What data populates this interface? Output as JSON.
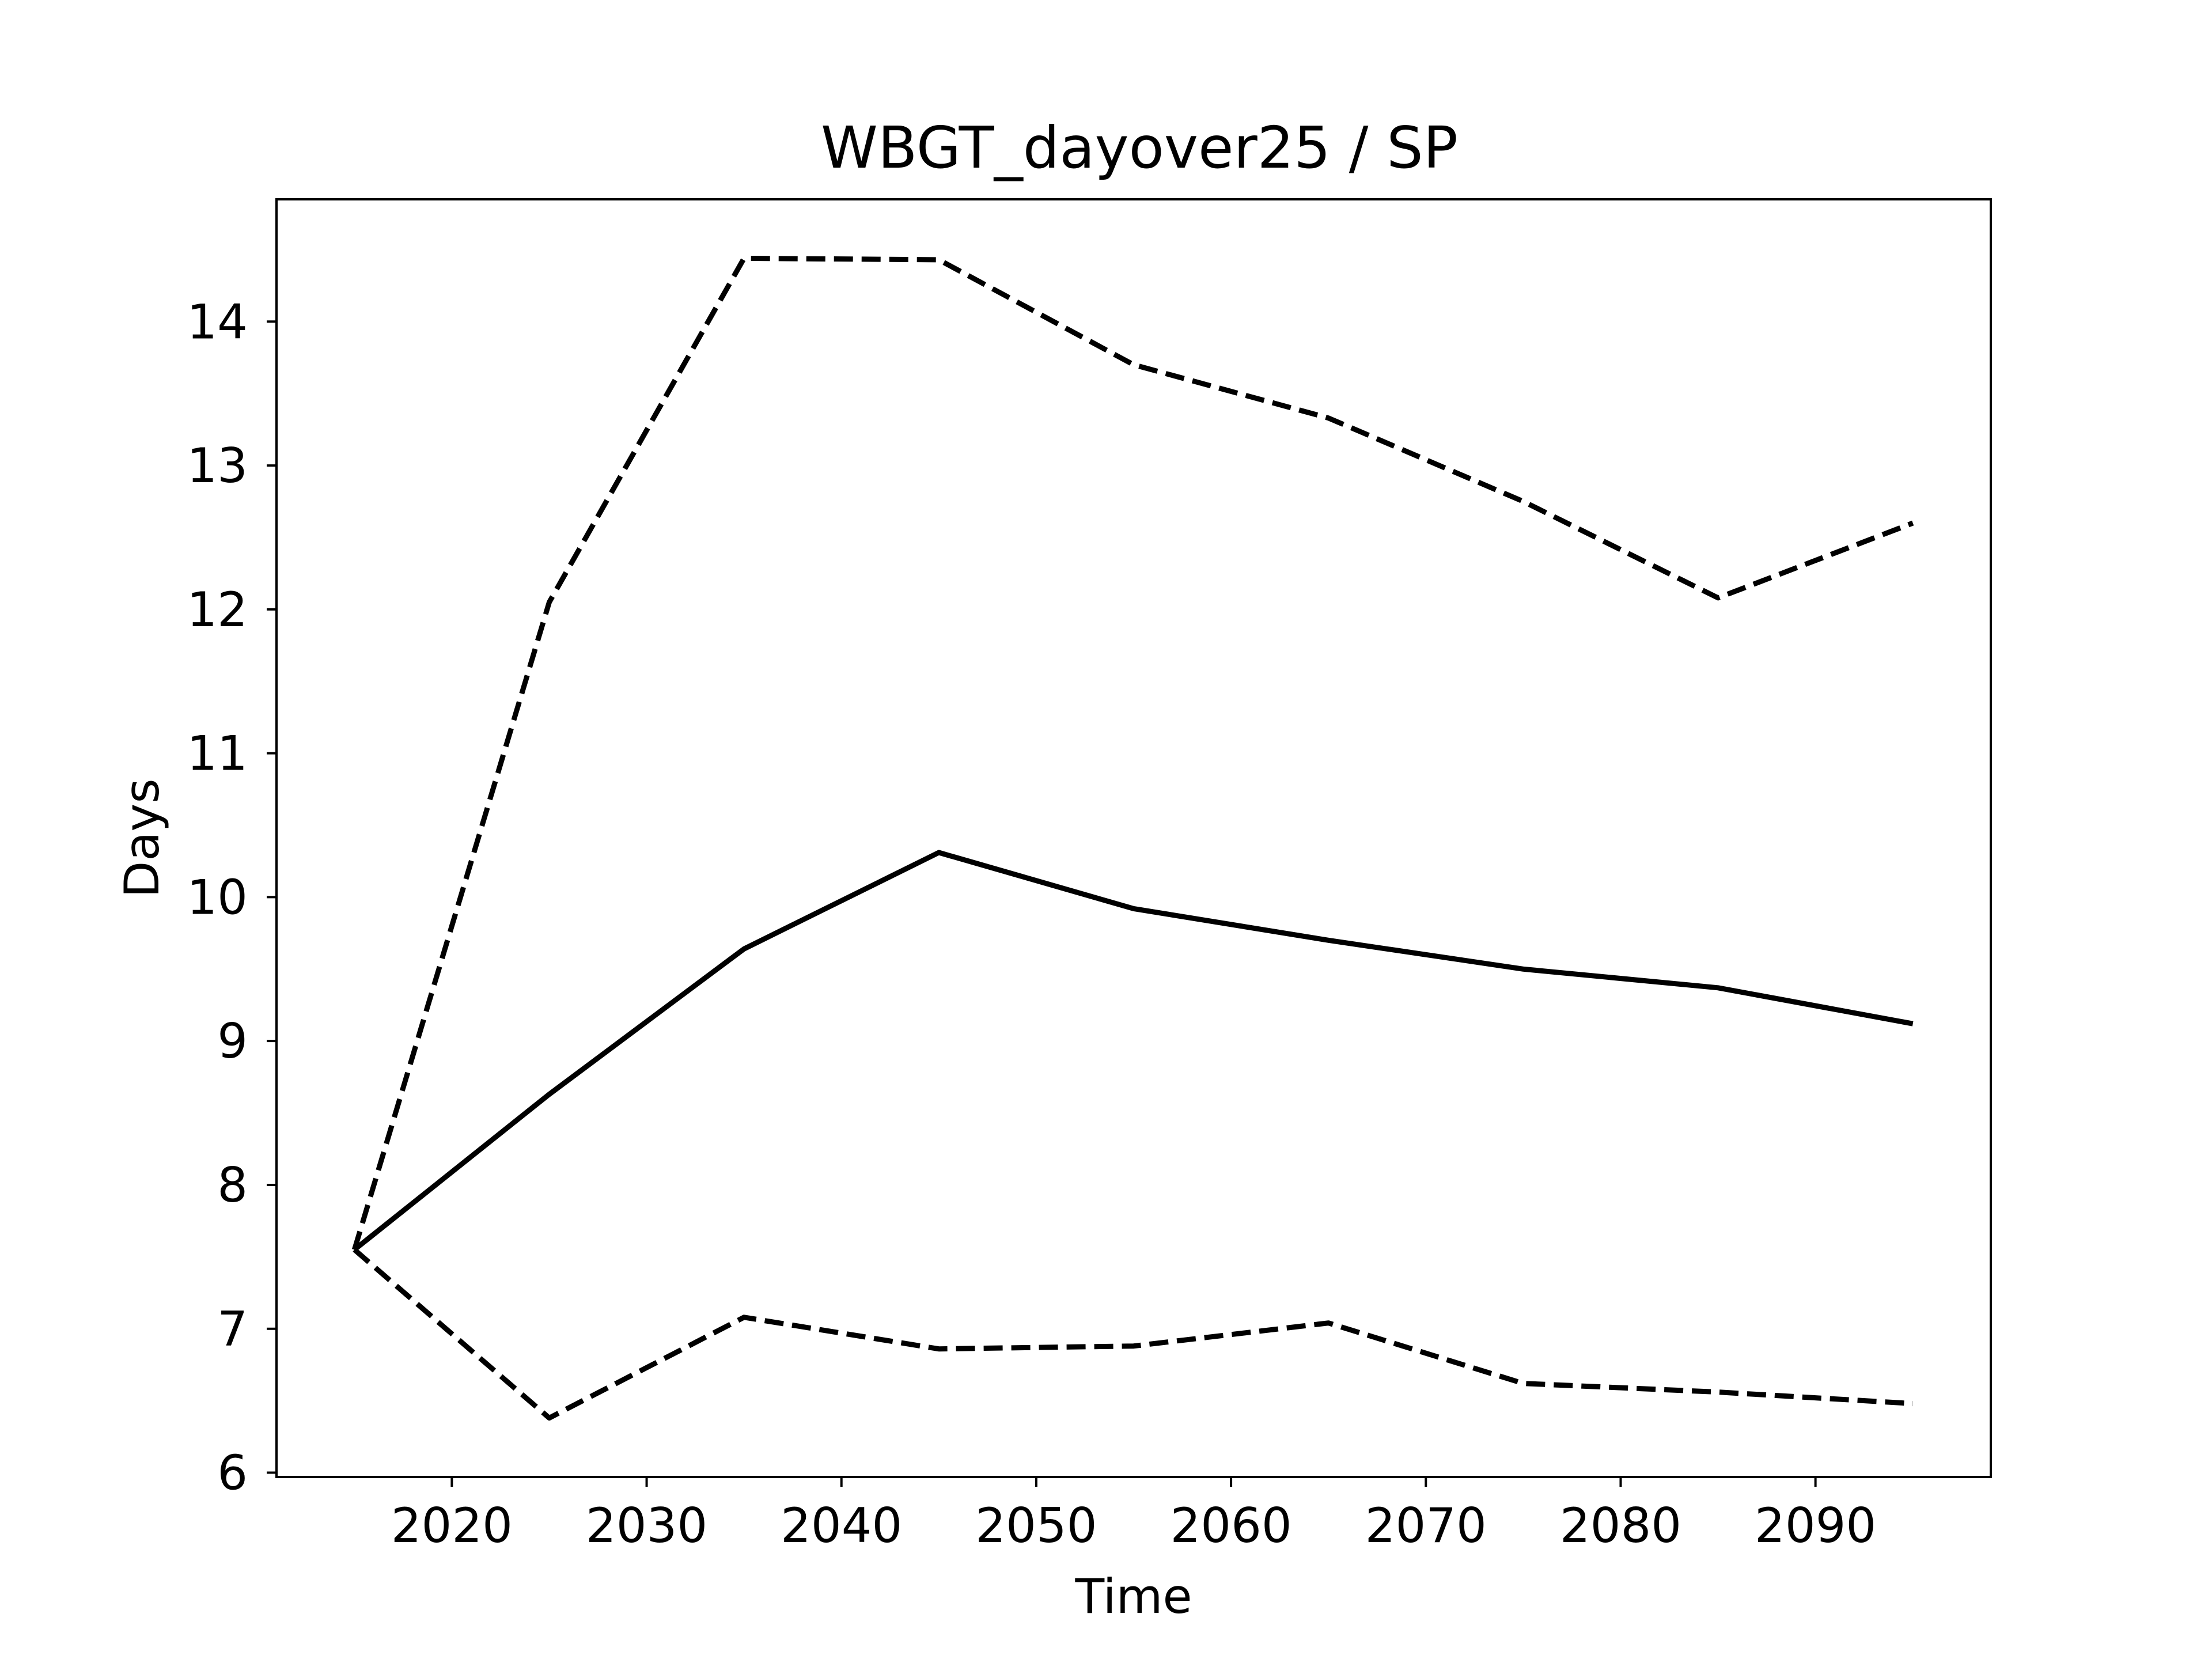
{
  "chart_data": {
    "type": "line",
    "title": "WBGT_dayover25 / SP",
    "xlabel": "Time",
    "ylabel": "Days",
    "x": [
      2015,
      2025,
      2035,
      2045,
      2055,
      2065,
      2075,
      2085,
      2095
    ],
    "xlim": [
      2011,
      2099
    ],
    "ylim": [
      5.97,
      14.85
    ],
    "xticks": [
      2020,
      2030,
      2040,
      2050,
      2060,
      2070,
      2080,
      2090
    ],
    "yticks": [
      6,
      7,
      8,
      9,
      10,
      11,
      12,
      13,
      14
    ],
    "grid": false,
    "legend": "none",
    "series": [
      {
        "style": "solid",
        "color": "#000000",
        "values": [
          7.55,
          8.63,
          9.64,
          10.31,
          9.92,
          9.7,
          9.5,
          9.37,
          9.12
        ]
      },
      {
        "style": "dashed",
        "color": "#000000",
        "values": [
          7.55,
          12.05,
          14.44,
          14.43,
          13.7,
          13.33,
          12.75,
          12.08,
          12.6
        ]
      },
      {
        "style": "dashed",
        "color": "#000000",
        "values": [
          7.55,
          6.38,
          7.08,
          6.86,
          6.88,
          7.04,
          6.62,
          6.56,
          6.48
        ]
      }
    ]
  }
}
